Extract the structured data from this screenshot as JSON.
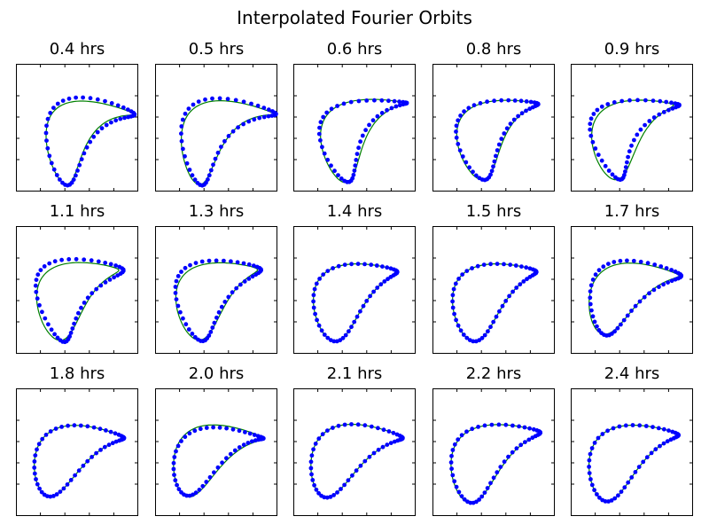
{
  "title": "Interpolated Fourier Orbits",
  "colors": {
    "dots": "#0000ff",
    "curve": "#008000",
    "axes": "#000000"
  },
  "chart_data": {
    "type": "scatter",
    "title": "Interpolated Fourier Orbits",
    "grid": false,
    "subplots": [
      {
        "title": "0.4 hrs",
        "series": [
          {
            "type": "scatter",
            "color": "#0000ff"
          },
          {
            "type": "line",
            "color": "#008000"
          }
        ]
      },
      {
        "title": "0.5 hrs",
        "series": [
          {
            "type": "scatter",
            "color": "#0000ff"
          },
          {
            "type": "line",
            "color": "#008000"
          }
        ]
      },
      {
        "title": "0.6 hrs",
        "series": [
          {
            "type": "scatter",
            "color": "#0000ff"
          },
          {
            "type": "line",
            "color": "#008000"
          }
        ]
      },
      {
        "title": "0.8 hrs",
        "series": [
          {
            "type": "scatter",
            "color": "#0000ff"
          },
          {
            "type": "line",
            "color": "#008000"
          }
        ]
      },
      {
        "title": "0.9 hrs",
        "series": [
          {
            "type": "scatter",
            "color": "#0000ff"
          },
          {
            "type": "line",
            "color": "#008000"
          }
        ]
      },
      {
        "title": "1.1 hrs",
        "series": [
          {
            "type": "scatter",
            "color": "#0000ff"
          },
          {
            "type": "line",
            "color": "#008000"
          }
        ]
      },
      {
        "title": "1.3 hrs",
        "series": [
          {
            "type": "scatter",
            "color": "#0000ff"
          },
          {
            "type": "line",
            "color": "#008000"
          }
        ]
      },
      {
        "title": "1.4 hrs",
        "series": [
          {
            "type": "scatter",
            "color": "#0000ff"
          },
          {
            "type": "line",
            "color": "#008000"
          }
        ]
      },
      {
        "title": "1.5 hrs",
        "series": [
          {
            "type": "scatter",
            "color": "#0000ff"
          },
          {
            "type": "line",
            "color": "#008000"
          }
        ]
      },
      {
        "title": "1.7 hrs",
        "series": [
          {
            "type": "scatter",
            "color": "#0000ff"
          },
          {
            "type": "line",
            "color": "#008000"
          }
        ]
      },
      {
        "title": "1.8 hrs",
        "series": [
          {
            "type": "scatter",
            "color": "#0000ff"
          },
          {
            "type": "line",
            "color": "#008000"
          }
        ]
      },
      {
        "title": "2.0 hrs",
        "series": [
          {
            "type": "scatter",
            "color": "#0000ff"
          },
          {
            "type": "line",
            "color": "#008000"
          }
        ]
      },
      {
        "title": "2.1 hrs",
        "series": [
          {
            "type": "scatter",
            "color": "#0000ff"
          },
          {
            "type": "line",
            "color": "#008000"
          }
        ]
      },
      {
        "title": "2.2 hrs",
        "series": [
          {
            "type": "scatter",
            "color": "#0000ff"
          },
          {
            "type": "line",
            "color": "#008000"
          }
        ]
      },
      {
        "title": "2.4 hrs",
        "series": [
          {
            "type": "scatter",
            "color": "#0000ff"
          },
          {
            "type": "line",
            "color": "#008000"
          }
        ]
      }
    ]
  }
}
